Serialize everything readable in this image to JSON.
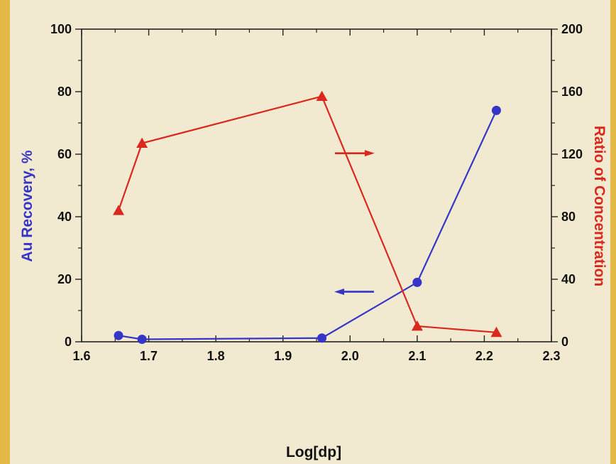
{
  "chart_data": {
    "type": "line",
    "xlabel": "Log[dp]",
    "ylabel_left": "Au Recovery, %",
    "ylabel_right": "Ratio of Concentration",
    "xlim": [
      1.6,
      2.3
    ],
    "ylim_left": [
      0,
      100
    ],
    "ylim_right": [
      0,
      200
    ],
    "x_ticks": [
      "1.6",
      "1.7",
      "1.8",
      "1.9",
      "2.0",
      "2.1",
      "2.2",
      "2.3"
    ],
    "y_left_ticks": [
      "0",
      "20",
      "40",
      "60",
      "80",
      "100"
    ],
    "y_right_ticks": [
      "0",
      "40",
      "80",
      "120",
      "160",
      "200"
    ],
    "grid": false,
    "series": [
      {
        "axis": "left",
        "color": "#3535c8",
        "marker": "circle",
        "points": [
          {
            "x": 1.655,
            "y": 2.0
          },
          {
            "x": 1.69,
            "y": 0.8
          },
          {
            "x": 1.958,
            "y": 1.2
          },
          {
            "x": 2.1,
            "y": 19.0
          },
          {
            "x": 2.218,
            "y": 74.0
          }
        ]
      },
      {
        "axis": "right",
        "color": "#d9281e",
        "marker": "triangle",
        "points": [
          {
            "x": 1.655,
            "y": 84
          },
          {
            "x": 1.69,
            "y": 127
          },
          {
            "x": 1.958,
            "y": 157
          },
          {
            "x": 2.1,
            "y": 10
          },
          {
            "x": 2.218,
            "y": 6
          }
        ]
      }
    ],
    "annotations": [
      {
        "type": "arrow",
        "direction": "right",
        "color": "#d9281e",
        "points_to": "right-axis",
        "x": 2.007,
        "y_left": 60.3
      },
      {
        "type": "arrow",
        "direction": "left",
        "color": "#3535c8",
        "points_to": "left-axis",
        "x": 2.006,
        "y_left": 16.0
      }
    ]
  }
}
